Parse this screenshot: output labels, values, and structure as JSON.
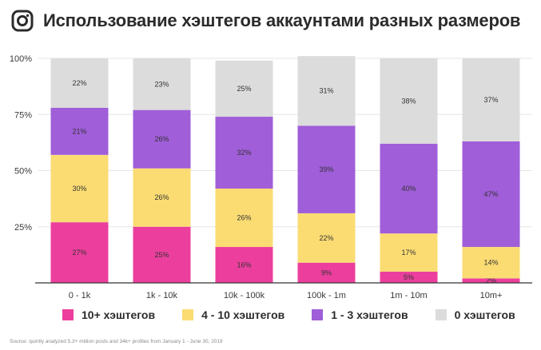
{
  "header": {
    "title": "Использование хэштегов аккаунтами разных размеров",
    "logo_icon": "instagram-icon"
  },
  "footer": {
    "source": "Source: quintly analyzed 5.3+ million posts and 34k+ profiles from January 1 - June 30, 2019"
  },
  "chart_data": {
    "type": "bar",
    "stacked": true,
    "title": "Использование хэштегов аккаунтами разных размеров",
    "categories": [
      "0 - 1k",
      "1k - 10k",
      "10k - 100k",
      "100k - 1m",
      "1m - 10m",
      "10m+"
    ],
    "ylim": [
      0,
      100
    ],
    "yticks": [
      0,
      25,
      50,
      75,
      100
    ],
    "ytick_labels": [
      "",
      "25%",
      "50%",
      "75%",
      "100%"
    ],
    "grid": true,
    "legend_position": "bottom",
    "series": [
      {
        "name": "10+ хэштегов",
        "color": "#ec3f9d",
        "values": [
          27,
          25,
          16,
          9,
          5,
          2
        ],
        "labels": [
          "27%",
          "25%",
          "16%",
          "9%",
          "5%",
          "2%"
        ]
      },
      {
        "name": "4 - 10 хэштегов",
        "color": "#fbdc73",
        "values": [
          30,
          26,
          26,
          22,
          17,
          14
        ],
        "labels": [
          "30%",
          "26%",
          "26%",
          "22%",
          "17%",
          "14%"
        ]
      },
      {
        "name": "1 - 3 хэштегов",
        "color": "#a05ed9",
        "values": [
          21,
          26,
          32,
          39,
          40,
          47
        ],
        "labels": [
          "21%",
          "26%",
          "32%",
          "39%",
          "40%",
          "47%"
        ]
      },
      {
        "name": "0 хэштегов",
        "color": "#dcdcdc",
        "values": [
          22,
          23,
          25,
          31,
          38,
          37
        ],
        "labels": [
          "22%",
          "23%",
          "25%",
          "31%",
          "38%",
          "37%"
        ]
      }
    ]
  }
}
